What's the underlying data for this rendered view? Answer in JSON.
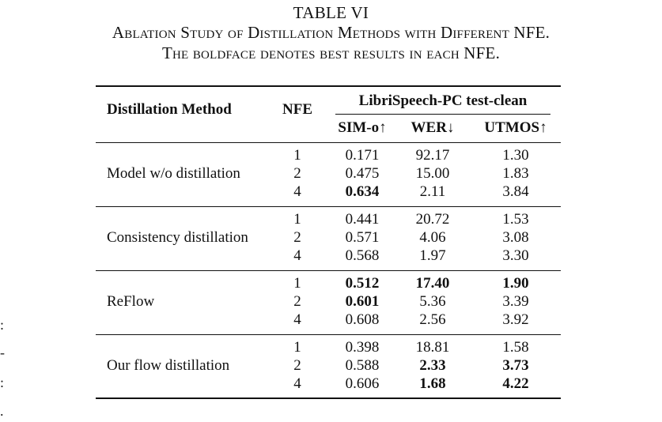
{
  "table": {
    "label": "TABLE VI",
    "caption_line1": "Ablation Study of Distillation Methods with Different NFE.",
    "caption_line2": "The boldface denotes best results in each NFE.",
    "header": {
      "method": "Distillation Method",
      "nfe": "NFE",
      "group": "LibriSpeech-PC test-clean",
      "sim": "SIM-o↑",
      "wer": "WER↓",
      "utmos": "UTMOS↑"
    },
    "groups": [
      {
        "method": "Model w/o distillation",
        "rows": [
          {
            "nfe": "1",
            "sim": "0.171",
            "wer": "92.17",
            "utmos": "1.30"
          },
          {
            "nfe": "2",
            "sim": "0.475",
            "wer": "15.00",
            "utmos": "1.83"
          },
          {
            "nfe": "4",
            "sim": "0.634",
            "wer": "2.11",
            "utmos": "3.84"
          }
        ]
      },
      {
        "method": "Consistency distillation",
        "rows": [
          {
            "nfe": "1",
            "sim": "0.441",
            "wer": "20.72",
            "utmos": "1.53"
          },
          {
            "nfe": "2",
            "sim": "0.571",
            "wer": "4.06",
            "utmos": "3.08"
          },
          {
            "nfe": "4",
            "sim": "0.568",
            "wer": "1.97",
            "utmos": "3.30"
          }
        ]
      },
      {
        "method": "ReFlow",
        "rows": [
          {
            "nfe": "1",
            "sim": "0.512",
            "wer": "17.40",
            "utmos": "1.90"
          },
          {
            "nfe": "2",
            "sim": "0.601",
            "wer": "5.36",
            "utmos": "3.39"
          },
          {
            "nfe": "4",
            "sim": "0.608",
            "wer": "2.56",
            "utmos": "3.92"
          }
        ]
      },
      {
        "method": "Our flow distillation",
        "rows": [
          {
            "nfe": "1",
            "sim": "0.398",
            "wer": "18.81",
            "utmos": "1.58"
          },
          {
            "nfe": "2",
            "sim": "0.588",
            "wer": "2.33",
            "utmos": "3.73"
          },
          {
            "nfe": "4",
            "sim": "0.606",
            "wer": "1.68",
            "utmos": "4.22"
          }
        ]
      }
    ]
  },
  "margin_marks": [
    ":",
    "-",
    ":",
    "."
  ]
}
